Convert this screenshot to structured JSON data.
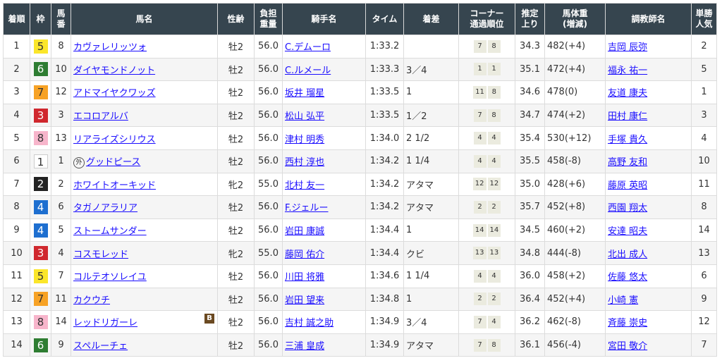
{
  "headers": [
    "着順",
    "枠",
    "馬番",
    "馬名",
    "性齢",
    "負担重量",
    "騎手名",
    "タイム",
    "着差",
    "コーナー通過順位",
    "推定上り",
    "馬体重(増減)",
    "調教師名",
    "単勝人気"
  ],
  "header_lines": [
    [
      "着順"
    ],
    [
      "枠"
    ],
    [
      "馬",
      "番"
    ],
    [
      "馬名"
    ],
    [
      "性齢"
    ],
    [
      "負担",
      "重量"
    ],
    [
      "騎手名"
    ],
    [
      "タイム"
    ],
    [
      "着差"
    ],
    [
      "コーナー",
      "通過順位"
    ],
    [
      "推定",
      "上り"
    ],
    [
      "馬体重",
      "(増減)"
    ],
    [
      "調教師名"
    ],
    [
      "単勝",
      "人気"
    ]
  ],
  "frame_colors": {
    "1": {
      "bg": "#ffffff",
      "fg": "#333333"
    },
    "2": {
      "bg": "#222222",
      "fg": "#ffffff"
    },
    "3": {
      "bg": "#d0282e",
      "fg": "#ffffff"
    },
    "4": {
      "bg": "#1e6fd0",
      "fg": "#ffffff"
    },
    "5": {
      "bg": "#fbe62a",
      "fg": "#333333"
    },
    "6": {
      "bg": "#2e7d32",
      "fg": "#ffffff"
    },
    "7": {
      "bg": "#f7a225",
      "fg": "#333333"
    },
    "8": {
      "bg": "#f7b5cb",
      "fg": "#333333"
    }
  },
  "rows": [
    {
      "rank": "1",
      "waku": "5",
      "num": "8",
      "horse": "カヴァレリッツォ",
      "sex_age": "牡2",
      "weight": "56.0",
      "jockey": "C.デムーロ",
      "time": "1:33.2",
      "margin": "",
      "corners": [
        "7",
        "8"
      ],
      "last3f": "34.3",
      "body_weight": "482(+4)",
      "trainer": "吉岡 辰弥",
      "pop": "2"
    },
    {
      "rank": "2",
      "waku": "6",
      "num": "10",
      "horse": "ダイヤモンドノット",
      "sex_age": "牡2",
      "weight": "56.0",
      "jockey": "C.ルメール",
      "time": "1:33.3",
      "margin": "3／4",
      "corners": [
        "1",
        "1"
      ],
      "last3f": "35.1",
      "body_weight": "472(+4)",
      "trainer": "福永 祐一",
      "pop": "5"
    },
    {
      "rank": "3",
      "waku": "7",
      "num": "12",
      "horse": "アドマイヤクワッズ",
      "sex_age": "牡2",
      "weight": "56.0",
      "jockey": "坂井 瑠星",
      "time": "1:33.5",
      "margin": "1",
      "corners": [
        "11",
        "8"
      ],
      "last3f": "34.6",
      "body_weight": "478(0)",
      "trainer": "友道 康夫",
      "pop": "1"
    },
    {
      "rank": "4",
      "waku": "3",
      "num": "3",
      "horse": "エコロアルバ",
      "sex_age": "牡2",
      "weight": "56.0",
      "jockey": "松山 弘平",
      "time": "1:33.5",
      "margin": "1／2",
      "corners": [
        "7",
        "8"
      ],
      "last3f": "34.7",
      "body_weight": "474(+2)",
      "trainer": "田村 康仁",
      "pop": "3"
    },
    {
      "rank": "5",
      "waku": "8",
      "num": "13",
      "horse": "リアライズシリウス",
      "sex_age": "牡2",
      "weight": "56.0",
      "jockey": "津村 明秀",
      "time": "1:34.0",
      "margin": "2 1/2",
      "corners": [
        "4",
        "4"
      ],
      "last3f": "35.4",
      "body_weight": "530(+12)",
      "trainer": "手塚 貴久",
      "pop": "4"
    },
    {
      "rank": "6",
      "waku": "1",
      "num": "1",
      "horse": "グッドピース",
      "foreign": "外",
      "sex_age": "牡2",
      "weight": "56.0",
      "jockey": "西村 淳也",
      "time": "1:34.2",
      "margin": "1 1/4",
      "corners": [
        "4",
        "4"
      ],
      "last3f": "35.5",
      "body_weight": "458(-8)",
      "trainer": "高野 友和",
      "pop": "10"
    },
    {
      "rank": "7",
      "waku": "2",
      "num": "2",
      "horse": "ホワイトオーキッド",
      "sex_age": "牝2",
      "weight": "55.0",
      "jockey": "北村 友一",
      "time": "1:34.2",
      "margin": "アタマ",
      "corners": [
        "12",
        "12"
      ],
      "last3f": "35.0",
      "body_weight": "428(+6)",
      "trainer": "藤原 英昭",
      "pop": "11"
    },
    {
      "rank": "8",
      "waku": "4",
      "num": "6",
      "horse": "タガノアラリア",
      "sex_age": "牡2",
      "weight": "56.0",
      "jockey": "F.ジェルー",
      "time": "1:34.2",
      "margin": "アタマ",
      "corners": [
        "2",
        "2"
      ],
      "last3f": "35.7",
      "body_weight": "452(+8)",
      "trainer": "西園 翔太",
      "pop": "8"
    },
    {
      "rank": "9",
      "waku": "4",
      "num": "5",
      "horse": "ストームサンダー",
      "sex_age": "牡2",
      "weight": "56.0",
      "jockey": "岩田 康誠",
      "time": "1:34.4",
      "margin": "1",
      "corners": [
        "14",
        "14"
      ],
      "last3f": "34.5",
      "body_weight": "460(+2)",
      "trainer": "安達 昭夫",
      "pop": "14"
    },
    {
      "rank": "10",
      "waku": "3",
      "num": "4",
      "horse": "コスモレッド",
      "sex_age": "牝2",
      "weight": "55.0",
      "jockey": "藤岡 佑介",
      "time": "1:34.4",
      "margin": "クビ",
      "corners": [
        "13",
        "13"
      ],
      "last3f": "34.8",
      "body_weight": "444(-8)",
      "trainer": "北出 成人",
      "pop": "13"
    },
    {
      "rank": "11",
      "waku": "5",
      "num": "7",
      "horse": "コルテオソレイユ",
      "sex_age": "牡2",
      "weight": "56.0",
      "jockey": "川田 将雅",
      "time": "1:34.6",
      "margin": "1 1/4",
      "corners": [
        "4",
        "4"
      ],
      "last3f": "36.0",
      "body_weight": "458(+2)",
      "trainer": "佐藤 悠太",
      "pop": "6"
    },
    {
      "rank": "12",
      "waku": "7",
      "num": "11",
      "horse": "カクウチ",
      "sex_age": "牡2",
      "weight": "56.0",
      "jockey": "岩田 望来",
      "time": "1:34.8",
      "margin": "1",
      "corners": [
        "2",
        "2"
      ],
      "last3f": "36.4",
      "body_weight": "452(+4)",
      "trainer": "小崎 憲",
      "pop": "9"
    },
    {
      "rank": "13",
      "waku": "8",
      "num": "14",
      "horse": "レッドリガーレ",
      "blinker": "B",
      "sex_age": "牡2",
      "weight": "56.0",
      "jockey": "吉村 誠之助",
      "time": "1:34.9",
      "margin": "3／4",
      "corners": [
        "7",
        "4"
      ],
      "last3f": "36.2",
      "body_weight": "462(-8)",
      "trainer": "斉藤 崇史",
      "pop": "12"
    },
    {
      "rank": "14",
      "waku": "6",
      "num": "9",
      "horse": "スペルーチェ",
      "sex_age": "牡2",
      "weight": "56.0",
      "jockey": "三浦 皇成",
      "time": "1:34.9",
      "margin": "アタマ",
      "corners": [
        "7",
        "8"
      ],
      "last3f": "36.1",
      "body_weight": "456(-4)",
      "trainer": "宮田 敬介",
      "pop": "7"
    }
  ]
}
